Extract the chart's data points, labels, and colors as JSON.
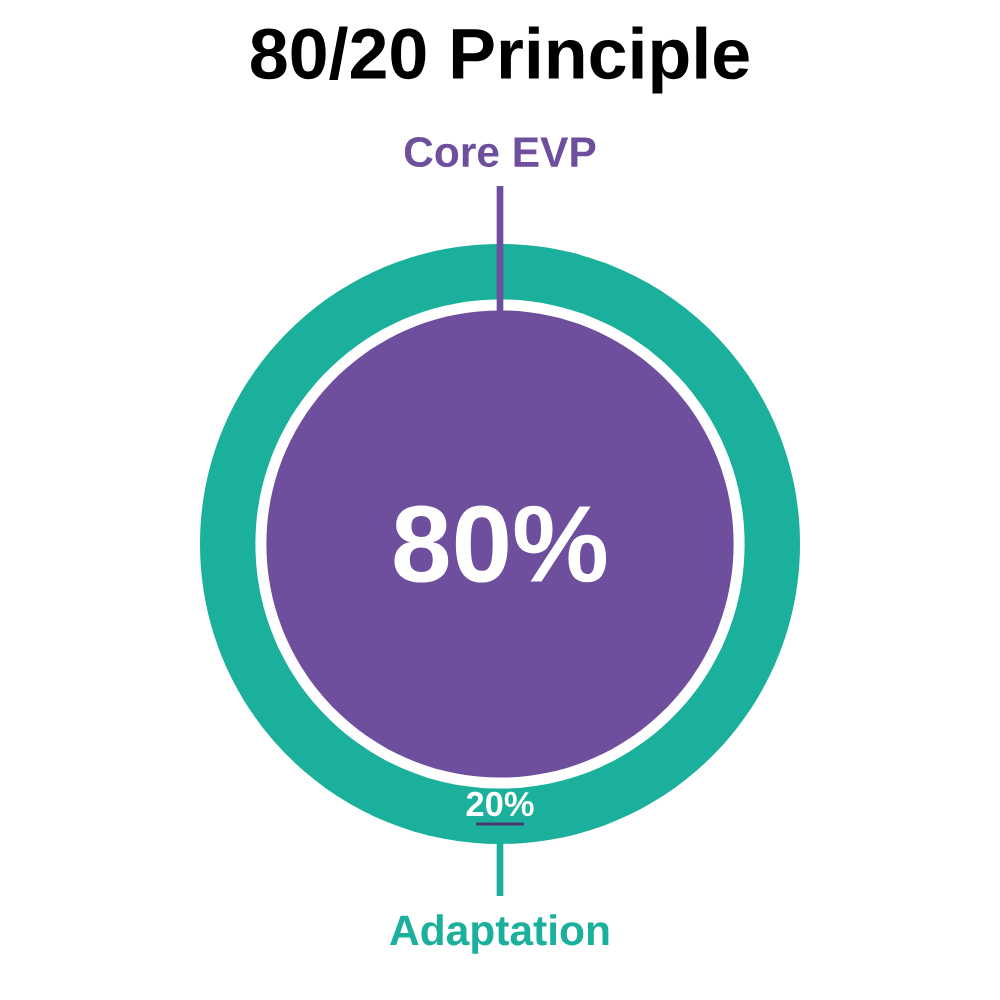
{
  "chart_data": {
    "type": "other",
    "title": "80/20 Principle",
    "categories": [
      "Core EVP",
      "Adaptation"
    ],
    "values": [
      80,
      20
    ],
    "value_labels": [
      "80%",
      "20%"
    ],
    "colors": [
      "#6d4f9e",
      "#1bb09b"
    ]
  }
}
